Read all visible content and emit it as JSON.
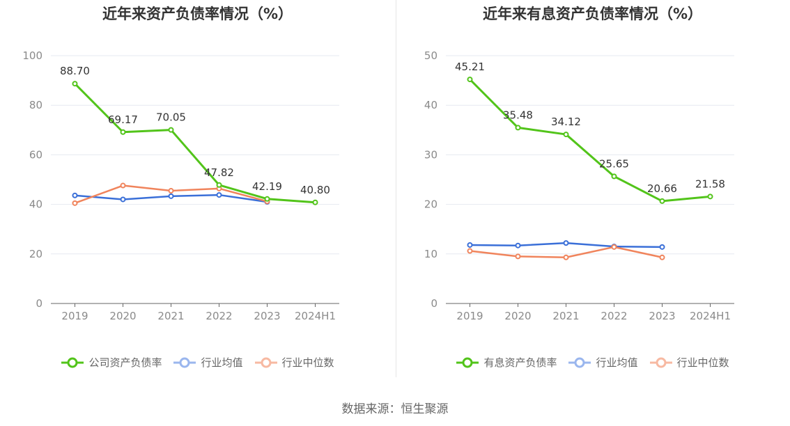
{
  "charts": [
    {
      "title": "近年来资产负债率情况（%）",
      "legend": [
        "公司资产负债率",
        "行业均值",
        "行业中位数"
      ]
    },
    {
      "title": "近年来有息资产负债率情况（%）",
      "legend": [
        "有息资产负债率",
        "行业均值",
        "行业中位数"
      ]
    }
  ],
  "source": "数据来源：恒生聚源",
  "colors": {
    "company": "#52c41a",
    "mean": "#3a6fd8",
    "median": "#f0845c",
    "grid": "#e6e9f0",
    "axis": "#666666"
  },
  "chart_data": [
    {
      "type": "line",
      "title": "近年来资产负债率情况（%）",
      "categories": [
        "2019",
        "2020",
        "2021",
        "2022",
        "2023",
        "2024H1"
      ],
      "ylim": [
        0,
        100
      ],
      "yticks": [
        0,
        20,
        40,
        60,
        80,
        100
      ],
      "grid": true,
      "legend_position": "bottom",
      "series": [
        {
          "name": "公司资产负债率",
          "values": [
            88.7,
            69.17,
            70.05,
            47.82,
            42.19,
            40.8
          ],
          "labels": [
            "88.70",
            "69.17",
            "70.05",
            "47.82",
            "42.19",
            "40.80"
          ]
        },
        {
          "name": "行业均值",
          "values": [
            43.6,
            42.0,
            43.3,
            43.8,
            41.0,
            null
          ]
        },
        {
          "name": "行业中位数",
          "values": [
            40.5,
            47.6,
            45.5,
            46.4,
            41.2,
            null
          ]
        }
      ]
    },
    {
      "type": "line",
      "title": "近年来有息资产负债率情况（%）",
      "categories": [
        "2019",
        "2020",
        "2021",
        "2022",
        "2023",
        "2024H1"
      ],
      "ylim": [
        0,
        50
      ],
      "yticks": [
        0,
        10,
        20,
        30,
        40,
        50
      ],
      "grid": true,
      "legend_position": "bottom",
      "series": [
        {
          "name": "有息资产负债率",
          "values": [
            45.21,
            35.48,
            34.12,
            25.65,
            20.66,
            21.58
          ],
          "labels": [
            "45.21",
            "35.48",
            "34.12",
            "25.65",
            "20.66",
            "21.58"
          ]
        },
        {
          "name": "行业均值",
          "values": [
            11.8,
            11.7,
            12.2,
            11.5,
            11.4,
            null
          ]
        },
        {
          "name": "行业中位数",
          "values": [
            10.6,
            9.5,
            9.3,
            11.4,
            9.3,
            null
          ]
        }
      ]
    }
  ]
}
